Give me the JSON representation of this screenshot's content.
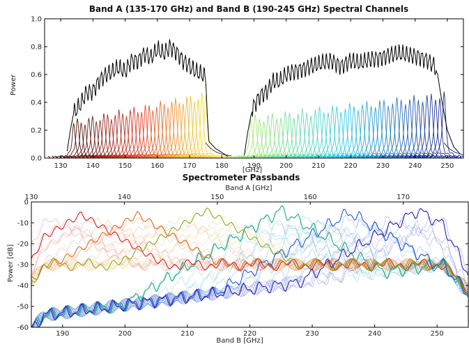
{
  "chart_data": [
    {
      "type": "line",
      "title": "Band A (135-170 GHz) and Band B (190-245 GHz) Spectral Channels",
      "xlabel": "[GHz]",
      "ylabel": "Power",
      "xlim": [
        125,
        255
      ],
      "ylim": [
        0.0,
        1.0
      ],
      "xticks": [
        "130",
        "140",
        "150",
        "160",
        "170",
        "180",
        "190",
        "200",
        "210",
        "220",
        "230",
        "240",
        "250"
      ],
      "yticks": [
        "0.0",
        "0.2",
        "0.4",
        "0.6",
        "0.8",
        "1.0"
      ],
      "grid": false,
      "series": [
        {
          "role": "total",
          "color": "#000000",
          "x": [
            132,
            133,
            134,
            136,
            138,
            140,
            142,
            144,
            146,
            148,
            150,
            152,
            154,
            156,
            158,
            160,
            162,
            164,
            166,
            168,
            170,
            172,
            174,
            175,
            175.5,
            176,
            178,
            180,
            182
          ],
          "y": [
            0.05,
            0.2,
            0.32,
            0.38,
            0.47,
            0.48,
            0.56,
            0.6,
            0.62,
            0.65,
            0.62,
            0.7,
            0.7,
            0.75,
            0.72,
            0.78,
            0.75,
            0.8,
            0.76,
            0.7,
            0.66,
            0.62,
            0.6,
            0.58,
            0.3,
            0.12,
            0.07,
            0.04,
            0.01
          ]
        },
        {
          "role": "total",
          "color": "#000000",
          "x": [
            187,
            188,
            189,
            190,
            192,
            194,
            196,
            198,
            200,
            202,
            205,
            208,
            211,
            214,
            217,
            220,
            223,
            226,
            229,
            232,
            235,
            238,
            241,
            244,
            246,
            247,
            248,
            250,
            252,
            254
          ],
          "y": [
            0.02,
            0.18,
            0.3,
            0.38,
            0.45,
            0.48,
            0.55,
            0.55,
            0.6,
            0.62,
            0.64,
            0.66,
            0.68,
            0.7,
            0.66,
            0.7,
            0.68,
            0.71,
            0.72,
            0.74,
            0.75,
            0.74,
            0.73,
            0.7,
            0.66,
            0.6,
            0.45,
            0.2,
            0.08,
            0.03
          ]
        }
      ],
      "channels": [
        {
          "band": "A",
          "color_from": "#3b0a08",
          "color_mid": "#e0301c",
          "color_to": "#f5e030",
          "center_start": 134,
          "center_end": 175,
          "count": 36,
          "peak_start": 0.25,
          "peak_end": 0.45,
          "width": 0.55
        },
        {
          "band": "B",
          "color_from": "#a6e86a",
          "color_mid": "#22c8e8",
          "color_to": "#121a8c",
          "center_start": 189,
          "center_end": 249,
          "count": 46,
          "peak_start": 0.28,
          "peak_end": 0.45,
          "width": 0.6
        }
      ]
    },
    {
      "type": "line",
      "title": "Spectrometer Passbands",
      "xlabel": "Band B [GHz]",
      "x2label": "Band A [GHz]",
      "ylabel": "Power [dB]",
      "xlim": [
        185,
        255
      ],
      "x2lim": [
        130,
        177
      ],
      "ylim": [
        -60,
        0
      ],
      "xticks": [
        "190",
        "200",
        "210",
        "220",
        "230",
        "240",
        "250"
      ],
      "x2ticks": [
        "130",
        "140",
        "150",
        "160",
        "170"
      ],
      "yticks": [
        "0",
        "-10",
        "-20",
        "-30",
        "-40",
        "-50",
        "-60"
      ],
      "grid": false,
      "highlighted": [
        {
          "color": "#d42020",
          "peak_x": 193,
          "peak_db": -6
        },
        {
          "color": "#e06a1a",
          "peak_x": 202,
          "peak_db": -6
        },
        {
          "color": "#8aaa1e",
          "peak_x": 213,
          "peak_db": -4
        },
        {
          "color": "#1ea87a",
          "peak_x": 225,
          "peak_db": -4
        },
        {
          "color": "#1e5ad4",
          "peak_x": 236,
          "peak_db": -5
        },
        {
          "color": "#2a1ab0",
          "peak_x": 247,
          "peak_db": -4
        }
      ],
      "faint_count": 28
    }
  ]
}
